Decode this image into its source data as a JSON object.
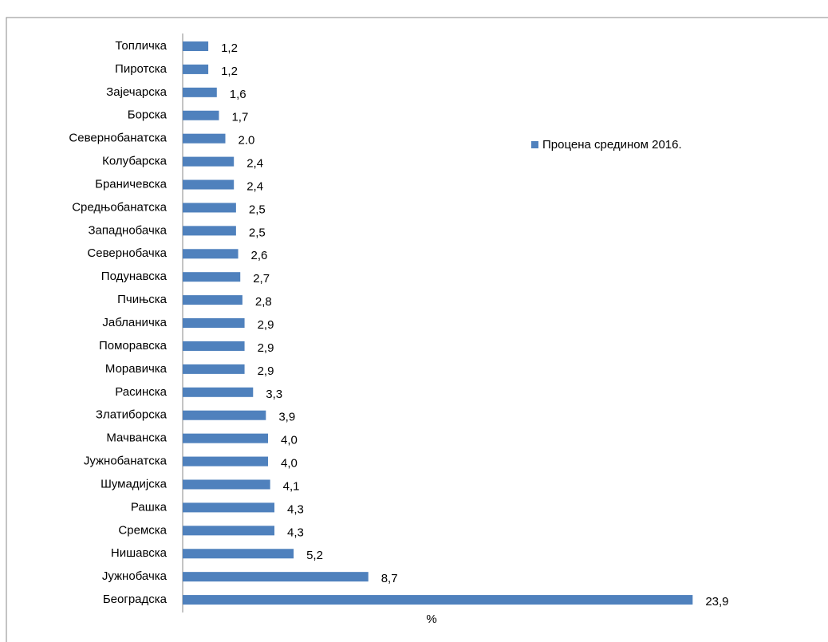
{
  "chart_data": {
    "type": "bar",
    "orientation": "horizontal",
    "categories": [
      "Топличка",
      "Пиротска",
      "Зајечарска",
      "Борска",
      "Севернобанатска",
      "Колубарска",
      "Браничевска",
      "Средњобанатска",
      "Западнобачка",
      "Севернобачка",
      "Подунавска",
      "Пчињска",
      "Јабланичка",
      "Поморавска",
      "Моравичка",
      "Расинска",
      "Златиборска",
      "Мачванска",
      "Јужнобанатска",
      "Шумадијска",
      "Рашка",
      "Сремска",
      "Нишавска",
      "Јужнобачка",
      "Београдска"
    ],
    "series": [
      {
        "name": "Процена средином 2016.",
        "color": "#4f81bd",
        "values": [
          1.2,
          1.2,
          1.6,
          1.7,
          2.0,
          2.4,
          2.4,
          2.5,
          2.5,
          2.6,
          2.7,
          2.8,
          2.9,
          2.9,
          2.9,
          3.3,
          3.9,
          4.0,
          4.0,
          4.1,
          4.3,
          4.3,
          5.2,
          8.7,
          23.9
        ],
        "value_labels": [
          "1,2",
          "1,2",
          "1,6",
          "1,7",
          "2.0",
          "2,4",
          "2,4",
          "2,5",
          "2,5",
          "2,6",
          "2,7",
          "2,8",
          "2,9",
          "2,9",
          "2,9",
          "3,3",
          "3,9",
          "4,0",
          "4,0",
          "4,1",
          "4,3",
          "4,3",
          "5,2",
          "8,7",
          "23,9"
        ]
      }
    ],
    "xlabel": "%",
    "xlim": [
      0,
      28
    ],
    "legend": "right"
  }
}
